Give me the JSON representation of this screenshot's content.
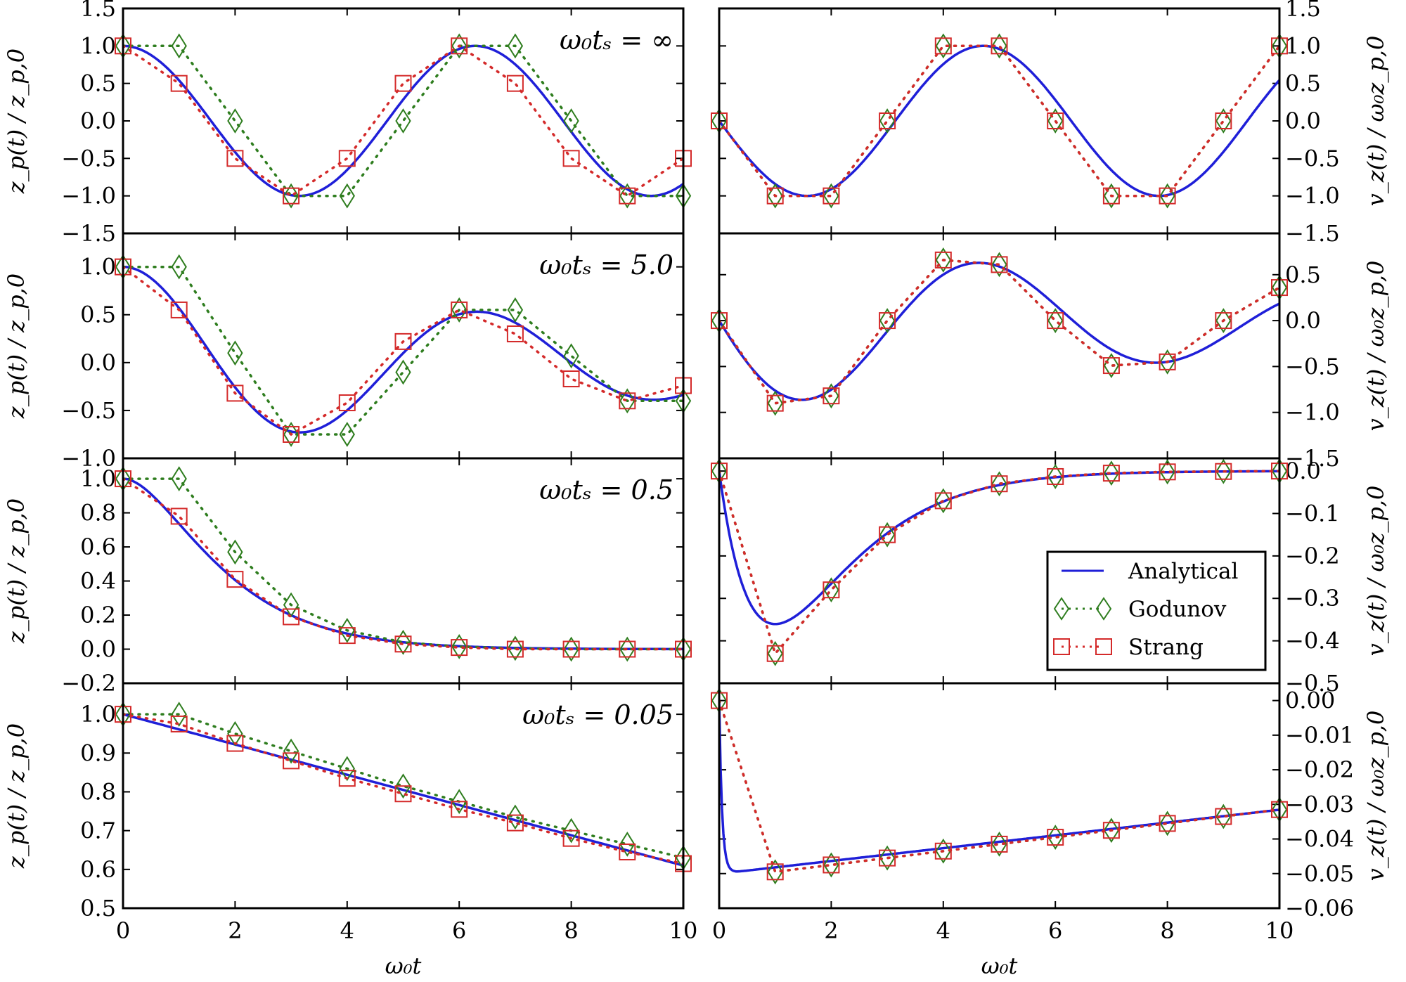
{
  "colors": {
    "analytical": "#1f1fd8",
    "godunov": "#2e7d1e",
    "strang": "#d42a2a",
    "axes": "#000000"
  },
  "labels": {
    "xlabel": "ω₀t",
    "ylabel_left": "z_p(t) / z_p,0",
    "ylabel_right": "v_z(t) / ω₀z_p,0"
  },
  "legend": {
    "position": "right panel, third row, lower-right",
    "entries": [
      "Analytical",
      "Godunov",
      "Strang"
    ]
  },
  "chart_data": [
    {
      "type": "line",
      "title": "ω₀tₛ = ∞",
      "xlabel": "",
      "ylabel": "z_p(t) / z_p,0",
      "xlim": [
        0,
        10
      ],
      "ylim": [
        -1.5,
        1.5
      ],
      "yticks": [
        -1.5,
        -1.0,
        -0.5,
        0.0,
        0.5,
        1.0,
        1.5
      ],
      "ytick_labels": [
        "−1.5",
        "−1.0",
        "−0.5",
        "0.0",
        "0.5",
        "1.0",
        "1.5"
      ],
      "analytical": "cos(ω₀t)",
      "series": [
        {
          "name": "Godunov",
          "x": [
            0,
            1,
            2,
            3,
            4,
            5,
            6,
            7,
            8,
            9,
            10
          ],
          "values": [
            1.0,
            1.0,
            0.0,
            -1.0,
            -1.0,
            0.0,
            1.0,
            1.0,
            0.0,
            -1.0,
            -1.0
          ]
        },
        {
          "name": "Strang",
          "x": [
            0,
            1,
            2,
            3,
            4,
            5,
            6,
            7,
            8,
            9,
            10
          ],
          "values": [
            1.0,
            0.5,
            -0.5,
            -1.0,
            -0.5,
            0.5,
            1.0,
            0.5,
            -0.5,
            -1.0,
            -0.5
          ]
        }
      ]
    },
    {
      "type": "line",
      "title": "",
      "xlabel": "",
      "ylabel": "v_z(t) / ω₀z_p,0",
      "xlim": [
        0,
        10
      ],
      "ylim": [
        -1.5,
        1.5
      ],
      "yticks": [
        -1.5,
        -1.0,
        -0.5,
        0.0,
        0.5,
        1.0,
        1.5
      ],
      "ytick_labels": [
        "−1.5",
        "−1.0",
        "−0.5",
        "0.0",
        "0.5",
        "1.0",
        "1.5"
      ],
      "analytical": "-sin(ω₀t)",
      "series": [
        {
          "name": "Godunov",
          "x": [
            0,
            1,
            2,
            3,
            4,
            5,
            6,
            7,
            8,
            9,
            10
          ],
          "values": [
            0.0,
            -1.0,
            -1.0,
            0.0,
            1.0,
            1.0,
            0.0,
            -1.0,
            -1.0,
            0.0,
            1.0
          ]
        },
        {
          "name": "Strang",
          "x": [
            0,
            1,
            2,
            3,
            4,
            5,
            6,
            7,
            8,
            9,
            10
          ],
          "values": [
            0.0,
            -1.0,
            -1.0,
            0.0,
            1.0,
            1.0,
            0.0,
            -1.0,
            -1.0,
            0.0,
            1.0
          ]
        }
      ]
    },
    {
      "type": "line",
      "title": "ω₀tₛ = 5.0",
      "xlabel": "",
      "ylabel": "z_p(t) / z_p,0",
      "xlim": [
        0,
        10
      ],
      "ylim": [
        -1.0,
        1.35
      ],
      "yticks": [
        -1.0,
        -0.5,
        0.0,
        0.5,
        1.0
      ],
      "ytick_labels": [
        "−1.0",
        "−0.5",
        "0.0",
        "0.5",
        "1.0"
      ],
      "analytical": "damped cosine, decay time 5.0",
      "series": [
        {
          "name": "Godunov",
          "x": [
            0,
            1,
            2,
            3,
            4,
            5,
            6,
            7,
            8,
            9,
            10
          ],
          "values": [
            1.0,
            1.0,
            0.1,
            -0.75,
            -0.75,
            -0.1,
            0.55,
            0.55,
            0.07,
            -0.4,
            -0.4
          ]
        },
        {
          "name": "Strang",
          "x": [
            0,
            1,
            2,
            3,
            4,
            5,
            6,
            7,
            8,
            9,
            10
          ],
          "values": [
            1.0,
            0.55,
            -0.32,
            -0.75,
            -0.42,
            0.22,
            0.55,
            0.3,
            -0.17,
            -0.4,
            -0.24
          ]
        }
      ]
    },
    {
      "type": "line",
      "title": "",
      "xlabel": "",
      "ylabel": "v_z(t) / ω₀z_p,0",
      "xlim": [
        0,
        10
      ],
      "ylim": [
        -1.5,
        0.95
      ],
      "yticks": [
        -1.5,
        -1.0,
        -0.5,
        0.0,
        0.5
      ],
      "ytick_labels": [
        "−1.5",
        "−1.0",
        "−0.5",
        "0.0",
        "0.5"
      ],
      "analytical": "damped sine, decay time 5.0",
      "series": [
        {
          "name": "Godunov",
          "x": [
            0,
            1,
            2,
            3,
            4,
            5,
            6,
            7,
            8,
            9,
            10
          ],
          "values": [
            0.0,
            -0.9,
            -0.82,
            0.0,
            0.66,
            0.61,
            0.0,
            -0.49,
            -0.45,
            0.0,
            0.36
          ]
        },
        {
          "name": "Strang",
          "x": [
            0,
            1,
            2,
            3,
            4,
            5,
            6,
            7,
            8,
            9,
            10
          ],
          "values": [
            0.0,
            -0.9,
            -0.82,
            0.0,
            0.66,
            0.61,
            0.0,
            -0.49,
            -0.45,
            0.0,
            0.36
          ]
        }
      ]
    },
    {
      "type": "line",
      "title": "ω₀tₛ = 0.5",
      "xlabel": "",
      "ylabel": "z_p(t) / z_p,0",
      "xlim": [
        0,
        10
      ],
      "ylim": [
        -0.2,
        1.12
      ],
      "yticks": [
        -0.2,
        0.0,
        0.2,
        0.4,
        0.6,
        0.8,
        1.0
      ],
      "ytick_labels": [
        "−0.2",
        "0.0",
        "0.2",
        "0.4",
        "0.6",
        "0.8",
        "1.0"
      ],
      "analytical": "overdamped decay, stopping time 0.5",
      "series": [
        {
          "name": "Godunov",
          "x": [
            0,
            1,
            2,
            3,
            4,
            5,
            6,
            7,
            8,
            9,
            10
          ],
          "values": [
            1.0,
            1.0,
            0.57,
            0.26,
            0.11,
            0.04,
            0.015,
            0.005,
            0.0,
            0.0,
            0.0
          ]
        },
        {
          "name": "Strang",
          "x": [
            0,
            1,
            2,
            3,
            4,
            5,
            6,
            7,
            8,
            9,
            10
          ],
          "values": [
            1.0,
            0.78,
            0.41,
            0.19,
            0.08,
            0.03,
            0.01,
            0.0,
            0.0,
            0.0,
            0.0
          ]
        }
      ]
    },
    {
      "type": "line",
      "title": "",
      "xlabel": "",
      "ylabel": "v_z(t) / ω₀z_p,0",
      "xlim": [
        0,
        10
      ],
      "ylim": [
        -0.5,
        0.03
      ],
      "yticks": [
        -0.5,
        -0.4,
        -0.3,
        -0.2,
        -0.1,
        0.0
      ],
      "ytick_labels": [
        "−0.5",
        "−0.4",
        "−0.3",
        "−0.2",
        "−0.1",
        "0.0"
      ],
      "analytical": "fast drop to −0.36 near ω₀t = 1, then recovery toward 0",
      "series": [
        {
          "name": "Godunov",
          "x": [
            0,
            1,
            2,
            3,
            4,
            5,
            6,
            7,
            8,
            9,
            10
          ],
          "values": [
            0.0,
            -0.43,
            -0.28,
            -0.15,
            -0.07,
            -0.03,
            -0.013,
            -0.005,
            -0.002,
            -0.001,
            0.0
          ]
        },
        {
          "name": "Strang",
          "x": [
            0,
            1,
            2,
            3,
            4,
            5,
            6,
            7,
            8,
            9,
            10
          ],
          "values": [
            0.0,
            -0.43,
            -0.28,
            -0.15,
            -0.07,
            -0.03,
            -0.013,
            -0.005,
            -0.002,
            -0.001,
            0.0
          ]
        }
      ]
    },
    {
      "type": "line",
      "title": "ω₀tₛ = 0.05",
      "xlabel": "ω₀t",
      "ylabel": "z_p(t) / z_p,0",
      "xlim": [
        0,
        10
      ],
      "ylim": [
        0.5,
        1.08
      ],
      "yticks": [
        0.5,
        0.6,
        0.7,
        0.8,
        0.9,
        1.0
      ],
      "ytick_labels": [
        "0.5",
        "0.6",
        "0.7",
        "0.8",
        "0.9",
        "1.0"
      ],
      "xticks": [
        0,
        2,
        4,
        6,
        8,
        10
      ],
      "xtick_labels": [
        "0",
        "2",
        "4",
        "6",
        "8",
        "10"
      ],
      "analytical": "slow linear-like decay from 1.0 to 0.61",
      "series": [
        {
          "name": "Godunov",
          "x": [
            0,
            1,
            2,
            3,
            4,
            5,
            6,
            7,
            8,
            9,
            10
          ],
          "values": [
            1.0,
            1.0,
            0.95,
            0.905,
            0.86,
            0.815,
            0.775,
            0.735,
            0.7,
            0.665,
            0.63
          ]
        },
        {
          "name": "Strang",
          "x": [
            0,
            1,
            2,
            3,
            4,
            5,
            6,
            7,
            8,
            9,
            10
          ],
          "values": [
            1.0,
            0.975,
            0.925,
            0.88,
            0.835,
            0.795,
            0.755,
            0.72,
            0.68,
            0.645,
            0.615
          ]
        }
      ]
    },
    {
      "type": "line",
      "title": "",
      "xlabel": "ω₀t",
      "ylabel": "v_z(t) / ω₀z_p,0",
      "xlim": [
        0,
        10
      ],
      "ylim": [
        -0.06,
        0.005
      ],
      "yticks": [
        -0.06,
        -0.05,
        -0.04,
        -0.03,
        -0.02,
        -0.01,
        0.0
      ],
      "ytick_labels": [
        "−0.06",
        "−0.05",
        "−0.04",
        "−0.03",
        "−0.02",
        "−0.01",
        "0.00"
      ],
      "xticks": [
        0,
        2,
        4,
        6,
        8,
        10
      ],
      "xtick_labels": [
        "0",
        "2",
        "4",
        "6",
        "8",
        "10"
      ],
      "analytical": "sharp drop to −0.0495 near ω₀t = 0.3, then slow rise to −0.031",
      "series": [
        {
          "name": "Godunov",
          "x": [
            0,
            1,
            2,
            3,
            4,
            5,
            6,
            7,
            8,
            9,
            10
          ],
          "values": [
            0.0,
            -0.0495,
            -0.0475,
            -0.0455,
            -0.0435,
            -0.0415,
            -0.0395,
            -0.0375,
            -0.0355,
            -0.0335,
            -0.0315
          ]
        },
        {
          "name": "Strang",
          "x": [
            0,
            1,
            2,
            3,
            4,
            5,
            6,
            7,
            8,
            9,
            10
          ],
          "values": [
            0.0,
            -0.0495,
            -0.0475,
            -0.0455,
            -0.0435,
            -0.0415,
            -0.0395,
            -0.0375,
            -0.0355,
            -0.0335,
            -0.0315
          ]
        }
      ]
    }
  ]
}
